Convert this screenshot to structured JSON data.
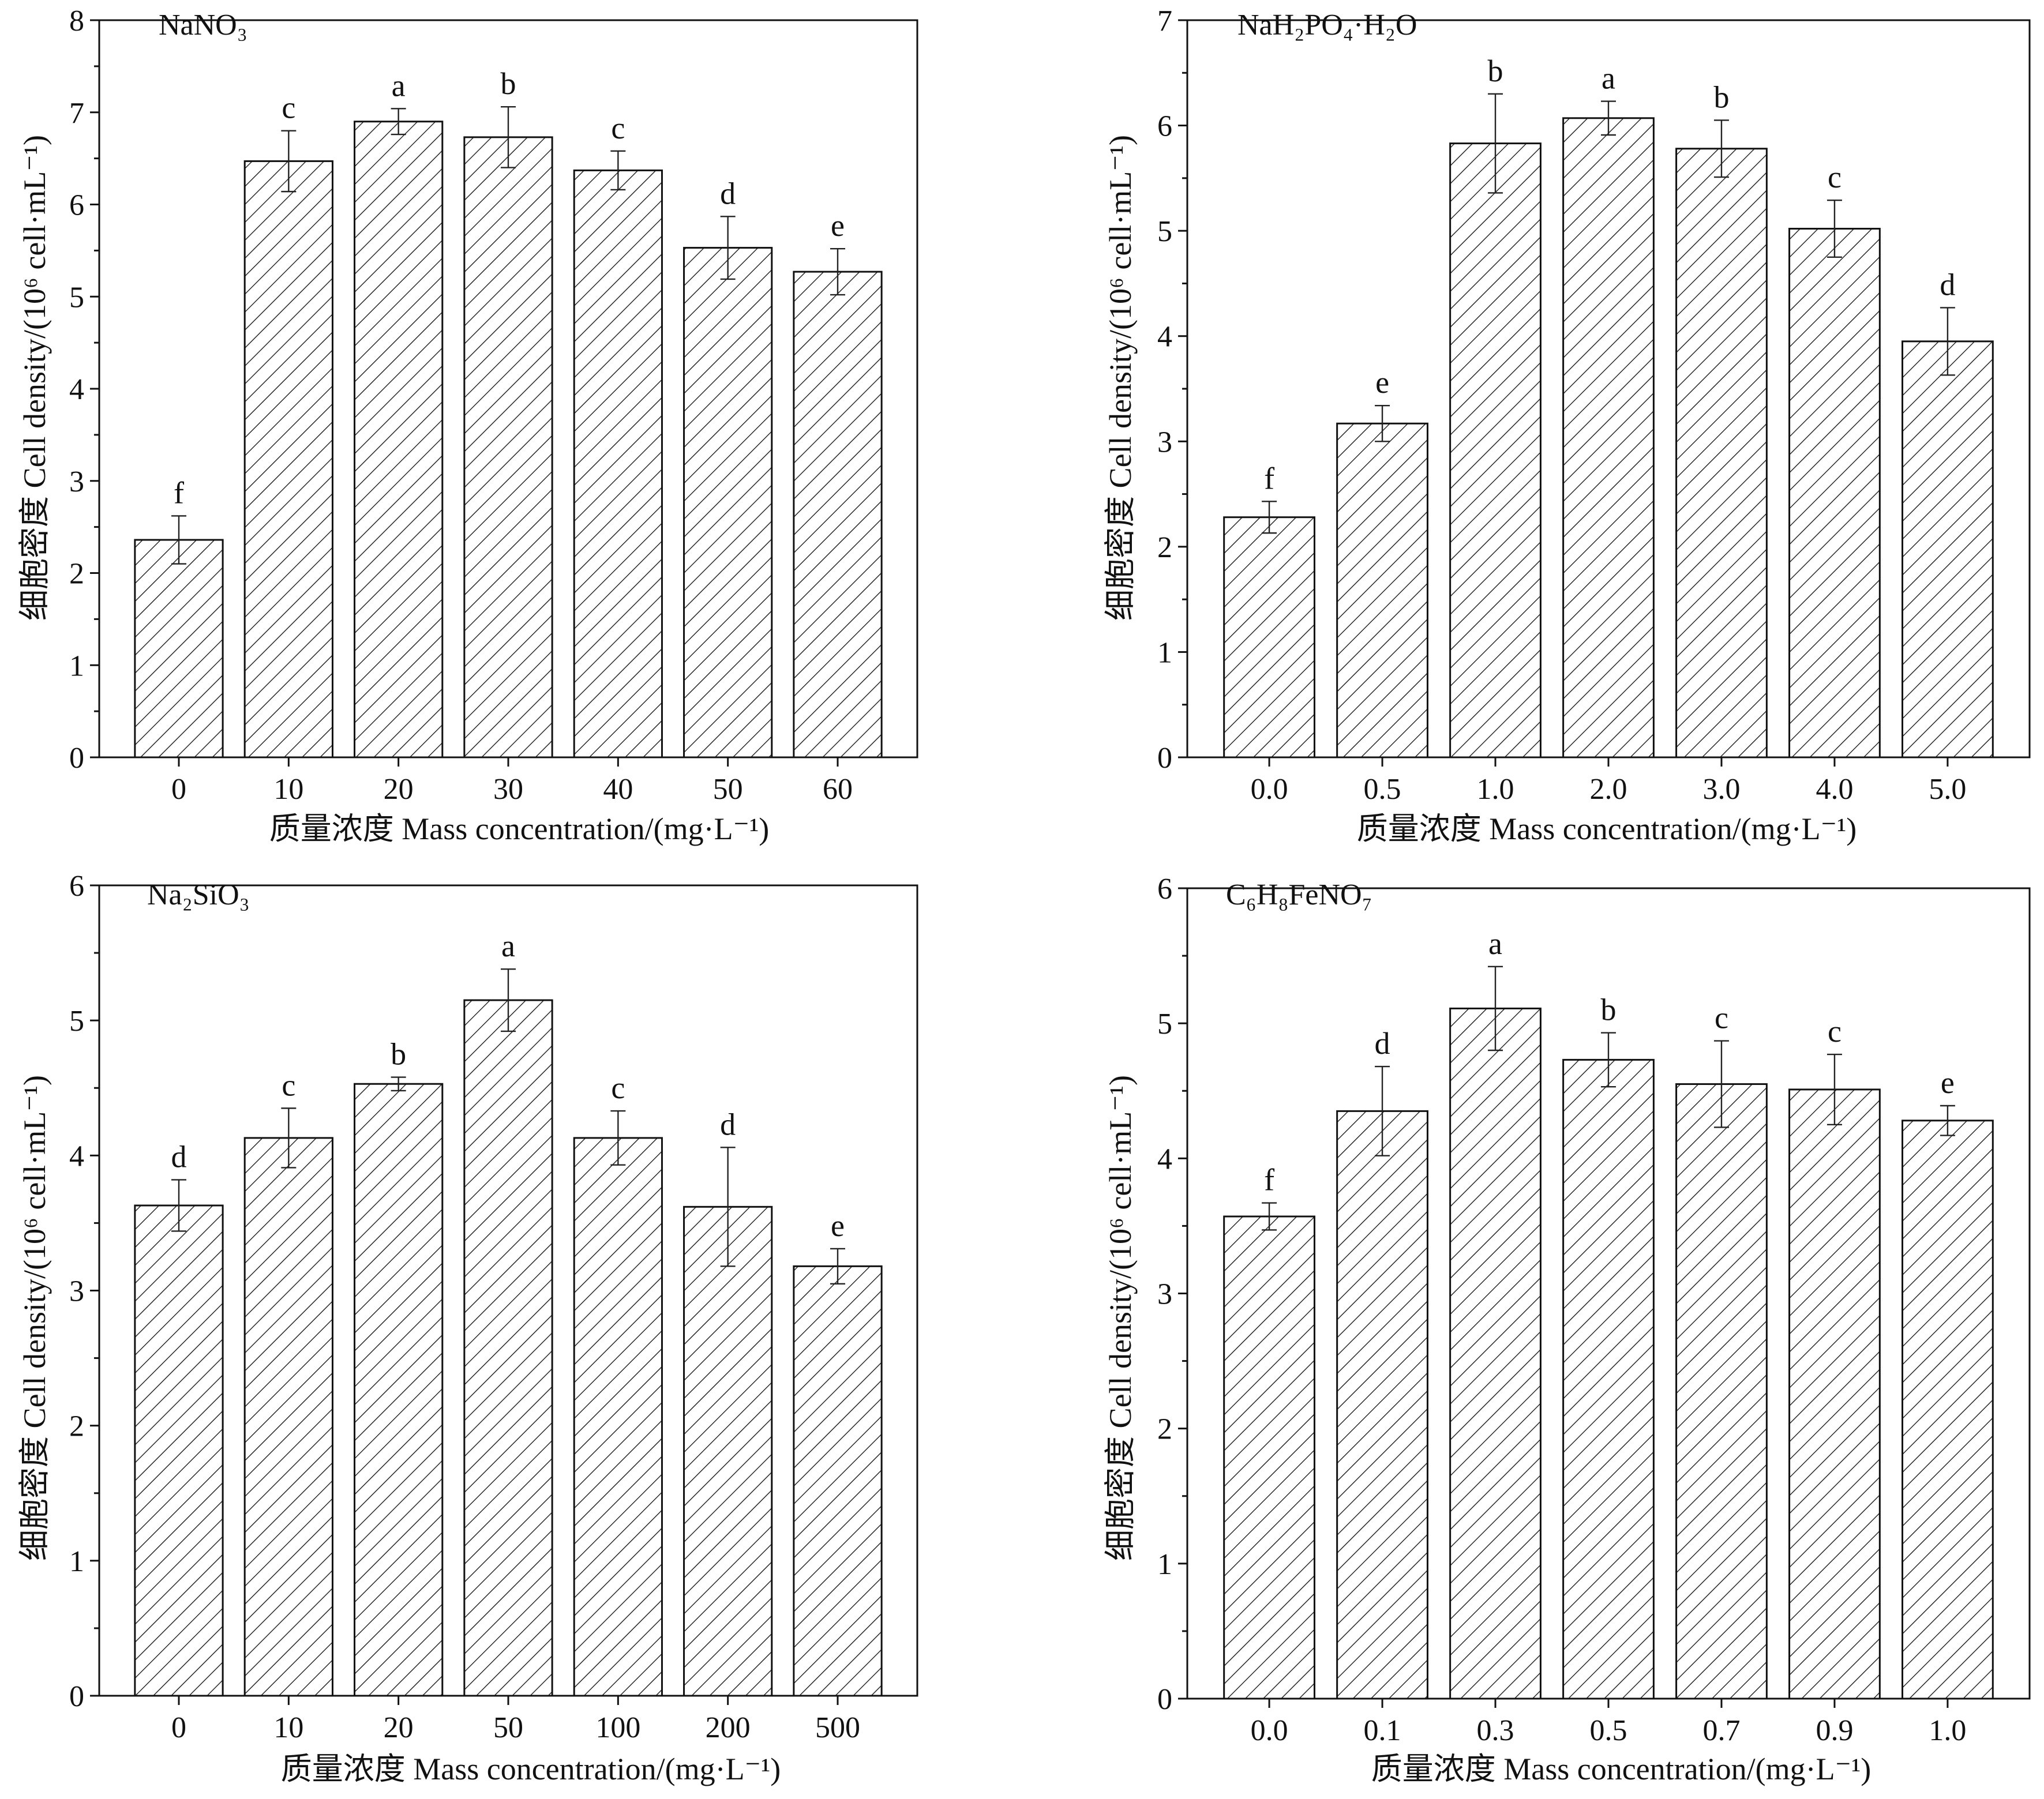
{
  "chart_data": [
    {
      "type": "bar",
      "title": "NaNO₃",
      "xlabel": "质量浓度 Mass concentration/(mg·L⁻¹)",
      "ylabel": "细胞密度 Cell density/(10⁶ cell·mL⁻¹)",
      "ylim": [
        0,
        8
      ],
      "yticks": [
        0,
        1,
        2,
        3,
        4,
        5,
        6,
        7,
        8
      ],
      "categories": [
        "0",
        "10",
        "20",
        "30",
        "40",
        "50",
        "60"
      ],
      "values": [
        2.36,
        6.47,
        6.9,
        6.73,
        6.37,
        5.53,
        5.27
      ],
      "errors": [
        0.26,
        0.33,
        0.14,
        0.33,
        0.21,
        0.34,
        0.25
      ],
      "letters": [
        "f",
        "c",
        "a",
        "b",
        "c",
        "d",
        "e"
      ]
    },
    {
      "type": "bar",
      "title": "NaH₂PO₄·H₂O",
      "xlabel": "质量浓度 Mass concentration/(mg·L⁻¹)",
      "ylabel": "细胞密度 Cell density/(10⁶ cell·mL⁻¹)",
      "ylim": [
        0,
        7
      ],
      "yticks": [
        0,
        1,
        2,
        3,
        4,
        5,
        6,
        7
      ],
      "categories": [
        "0.0",
        "0.5",
        "1.0",
        "2.0",
        "3.0",
        "4.0",
        "5.0"
      ],
      "values": [
        2.28,
        3.17,
        5.83,
        6.07,
        5.78,
        5.02,
        3.95
      ],
      "errors": [
        0.15,
        0.17,
        0.47,
        0.16,
        0.27,
        0.27,
        0.32
      ],
      "letters": [
        "f",
        "e",
        "b",
        "a",
        "b",
        "c",
        "d"
      ]
    },
    {
      "type": "bar",
      "title": "Na₂SiO₃",
      "xlabel": "质量浓度 Mass concentration/(mg·L⁻¹)",
      "ylabel": "细胞密度 Cell density/(10⁶ cell·mL⁻¹)",
      "ylim": [
        0,
        6
      ],
      "yticks": [
        0,
        1,
        2,
        3,
        4,
        5,
        6
      ],
      "categories": [
        "0",
        "10",
        "20",
        "50",
        "100",
        "200",
        "500"
      ],
      "values": [
        3.63,
        4.13,
        4.53,
        5.15,
        4.13,
        3.62,
        3.18
      ],
      "errors": [
        0.19,
        0.22,
        0.05,
        0.23,
        0.2,
        0.44,
        0.13
      ],
      "letters": [
        "d",
        "c",
        "b",
        "a",
        "c",
        "d",
        "e"
      ]
    },
    {
      "type": "bar",
      "title": "C₆H₈FeNO₇",
      "xlabel": "质量浓度 Mass concentration/(mg·L⁻¹)",
      "ylabel": "细胞密度 Cell density/(10⁶ cell·mL⁻¹)",
      "ylim": [
        0,
        6
      ],
      "yticks": [
        0,
        1,
        2,
        3,
        4,
        5,
        6
      ],
      "categories": [
        "0.0",
        "0.1",
        "0.3",
        "0.5",
        "0.7",
        "0.9",
        "1.0"
      ],
      "values": [
        3.57,
        4.35,
        5.11,
        4.73,
        4.55,
        4.51,
        4.28
      ],
      "errors": [
        0.1,
        0.33,
        0.31,
        0.2,
        0.32,
        0.26,
        0.11
      ],
      "letters": [
        "f",
        "d",
        "a",
        "b",
        "c",
        "c",
        "e"
      ]
    }
  ],
  "colors": {
    "bar_fill_pattern": "#2a2a2a",
    "bar_background": "#ffffff",
    "axis": "#111111"
  }
}
